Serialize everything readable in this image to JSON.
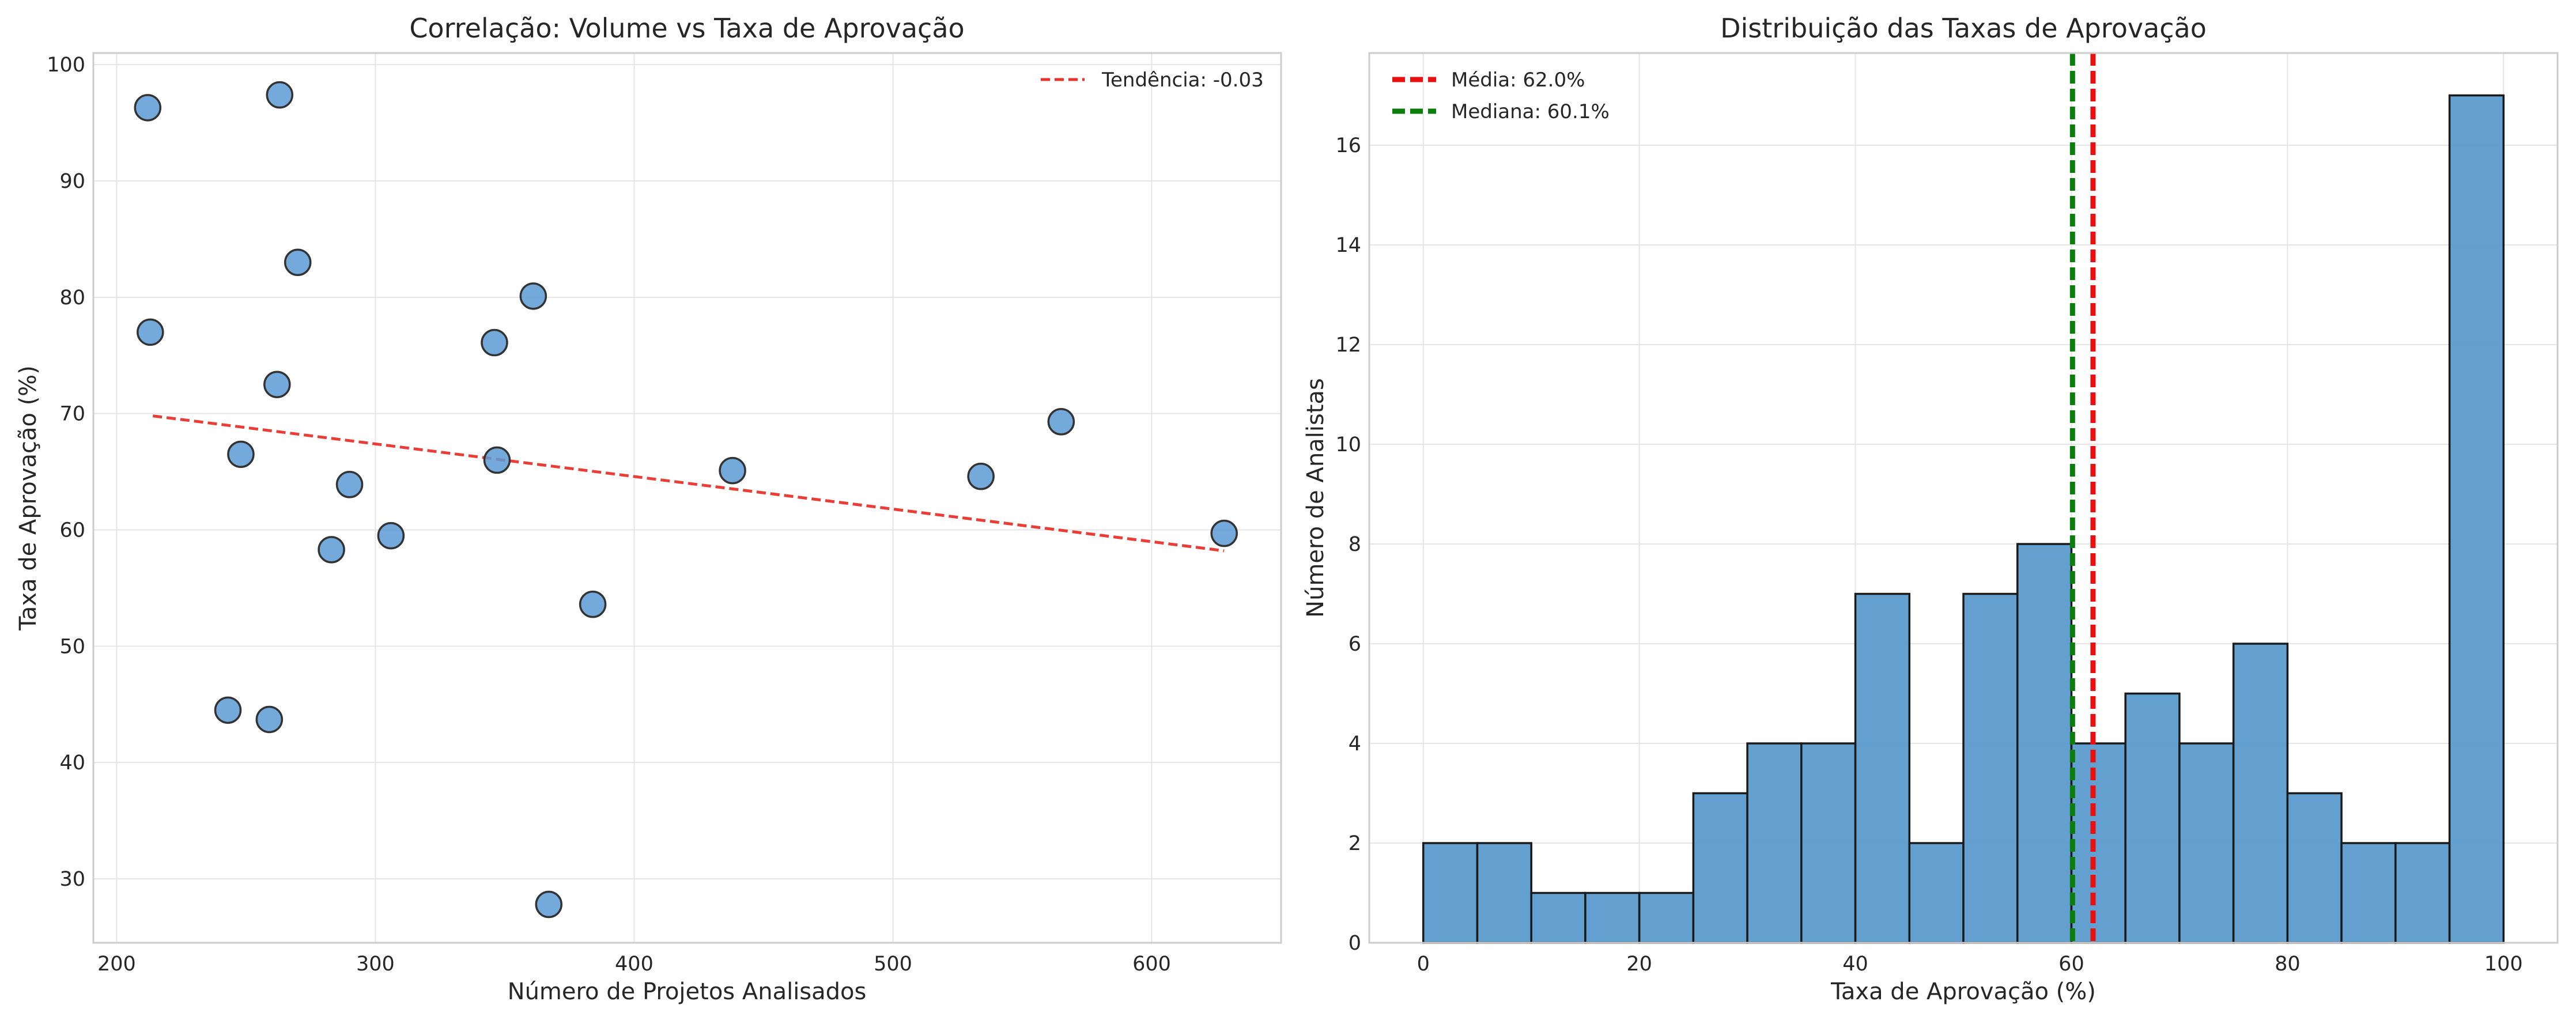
{
  "chart_data": [
    {
      "type": "scatter",
      "title": "Correlação: Volume vs Taxa de Aprovação",
      "xlabel": "Número de Projetos Analisados",
      "ylabel": "Taxa de Aprovação (%)",
      "xlim": [
        191,
        650
      ],
      "ylim": [
        24.5,
        101
      ],
      "xticks": [
        200,
        300,
        400,
        500,
        600
      ],
      "yticks": [
        30,
        40,
        50,
        60,
        70,
        80,
        90,
        100
      ],
      "grid": true,
      "legend_position": "top-right",
      "points": [
        {
          "x": 212,
          "y": 96.3
        },
        {
          "x": 263,
          "y": 97.4
        },
        {
          "x": 270,
          "y": 83.0
        },
        {
          "x": 213,
          "y": 77.0
        },
        {
          "x": 361,
          "y": 80.1
        },
        {
          "x": 346,
          "y": 76.1
        },
        {
          "x": 262,
          "y": 72.5
        },
        {
          "x": 565,
          "y": 69.3
        },
        {
          "x": 248,
          "y": 66.5
        },
        {
          "x": 347,
          "y": 66.0
        },
        {
          "x": 438,
          "y": 65.1
        },
        {
          "x": 534,
          "y": 64.6
        },
        {
          "x": 290,
          "y": 63.9
        },
        {
          "x": 628,
          "y": 59.7
        },
        {
          "x": 306,
          "y": 59.5
        },
        {
          "x": 283,
          "y": 58.3
        },
        {
          "x": 384,
          "y": 53.6
        },
        {
          "x": 243,
          "y": 44.5
        },
        {
          "x": 259,
          "y": 43.7
        },
        {
          "x": 367,
          "y": 27.8
        }
      ],
      "point_color": "#5b9bd5",
      "trendline": {
        "label": "Tendência: -0.03",
        "color": "#e8332b",
        "start": {
          "x": 214,
          "y": 69.8
        },
        "end": {
          "x": 628,
          "y": 58.2
        }
      }
    },
    {
      "type": "bar",
      "title": "Distribuição das Taxas de Aprovação",
      "xlabel": "Taxa de Aprovação (%)",
      "ylabel": "Número de Analistas",
      "xlim": [
        -5,
        105
      ],
      "ylim": [
        0,
        17.85
      ],
      "xticks": [
        0,
        20,
        40,
        60,
        80,
        100
      ],
      "yticks": [
        0,
        2,
        4,
        6,
        8,
        10,
        12,
        14,
        16
      ],
      "grid": true,
      "legend_position": "top-left",
      "bin_edges": [
        0,
        5,
        10,
        15,
        20,
        25,
        30,
        35,
        40,
        45,
        50,
        55,
        60,
        65,
        70,
        75,
        80,
        85,
        90,
        95,
        100
      ],
      "values": [
        2,
        2,
        1,
        1,
        1,
        3,
        4,
        4,
        7,
        2,
        7,
        8,
        4,
        5,
        4,
        6,
        3,
        2,
        2,
        17
      ],
      "bar_color": "#5b9bcc",
      "reference_lines": [
        {
          "label": "Média: 62.0%",
          "value": 62.0,
          "color": "#e81010"
        },
        {
          "label": "Mediana: 60.1%",
          "value": 60.1,
          "color": "#0a7d0a"
        }
      ]
    }
  ]
}
